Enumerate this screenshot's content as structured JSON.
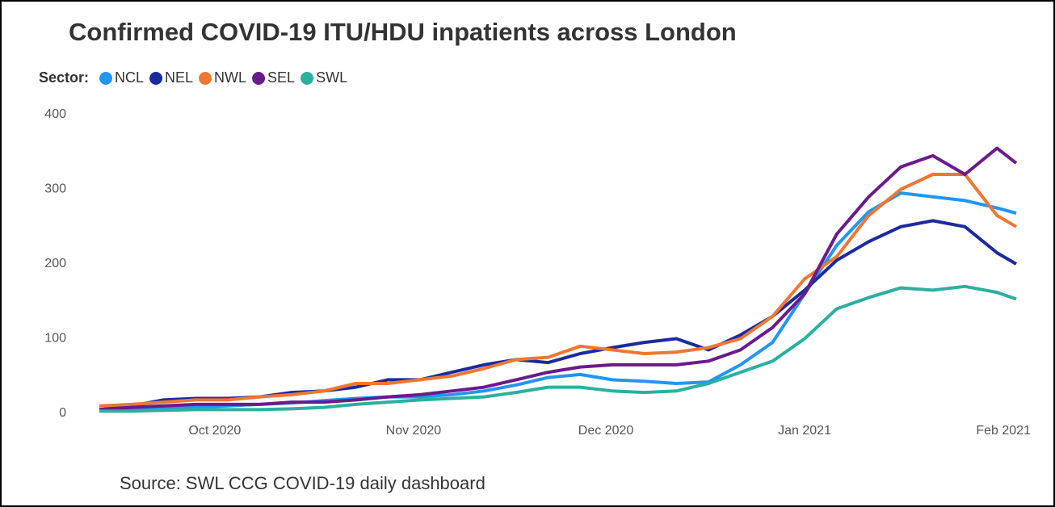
{
  "chart_data": {
    "type": "line",
    "title": "Confirmed COVID-19 ITU/HDU inpatients across London",
    "legend_title": "Sector:",
    "source": "Source: SWL CCG COVID-19 daily dashboard",
    "x": [
      "2020-09-13",
      "2020-09-18",
      "2020-09-23",
      "2020-09-28",
      "2020-10-03",
      "2020-10-08",
      "2020-10-13",
      "2020-10-18",
      "2020-10-23",
      "2020-10-28",
      "2020-11-02",
      "2020-11-07",
      "2020-11-12",
      "2020-11-17",
      "2020-11-22",
      "2020-11-27",
      "2020-12-02",
      "2020-12-07",
      "2020-12-12",
      "2020-12-17",
      "2020-12-22",
      "2020-12-27",
      "2021-01-01",
      "2021-01-06",
      "2021-01-11",
      "2021-01-16",
      "2021-01-21",
      "2021-01-26",
      "2021-01-31",
      "2021-02-03"
    ],
    "series": [
      {
        "name": "NCL",
        "color": "#2196f3",
        "values": [
          5,
          5,
          6,
          8,
          10,
          12,
          14,
          17,
          20,
          22,
          22,
          25,
          30,
          38,
          48,
          52,
          45,
          43,
          40,
          42,
          65,
          95,
          160,
          225,
          270,
          295,
          290,
          285,
          275,
          268
        ]
      },
      {
        "name": "NEL",
        "color": "#1c2a9e",
        "values": [
          5,
          10,
          18,
          20,
          20,
          22,
          28,
          30,
          35,
          45,
          45,
          55,
          65,
          72,
          68,
          80,
          88,
          95,
          100,
          85,
          105,
          130,
          165,
          205,
          230,
          250,
          258,
          250,
          215,
          200
        ]
      },
      {
        "name": "NWL",
        "color": "#ee7733",
        "values": [
          10,
          12,
          15,
          18,
          18,
          22,
          25,
          30,
          40,
          40,
          45,
          50,
          60,
          72,
          75,
          90,
          85,
          80,
          82,
          88,
          100,
          130,
          180,
          210,
          265,
          300,
          320,
          320,
          265,
          250
        ]
      },
      {
        "name": "SEL",
        "color": "#6b1a8c",
        "values": [
          5,
          8,
          10,
          12,
          12,
          12,
          15,
          15,
          18,
          22,
          25,
          30,
          35,
          45,
          55,
          62,
          65,
          65,
          65,
          70,
          85,
          115,
          160,
          240,
          290,
          330,
          345,
          320,
          355,
          335
        ]
      },
      {
        "name": "SWL",
        "color": "#2bb0a0",
        "values": [
          3,
          3,
          4,
          5,
          5,
          5,
          6,
          8,
          12,
          15,
          18,
          20,
          22,
          28,
          35,
          35,
          30,
          28,
          30,
          40,
          55,
          70,
          100,
          140,
          155,
          168,
          165,
          170,
          162,
          153
        ]
      }
    ],
    "xlim": [
      "2020-09-13",
      "2021-02-03"
    ],
    "xticks": [
      {
        "value": "2020-10-01",
        "label": "Oct 2020"
      },
      {
        "value": "2020-11-01",
        "label": "Nov 2020"
      },
      {
        "value": "2020-12-01",
        "label": "Dec 2020"
      },
      {
        "value": "2021-01-01",
        "label": "Jan 2021"
      },
      {
        "value": "2021-02-01",
        "label": "Feb 2021"
      }
    ],
    "ylim": [
      0,
      400
    ],
    "yticks": [
      0,
      100,
      200,
      300,
      400
    ],
    "grid": false
  }
}
